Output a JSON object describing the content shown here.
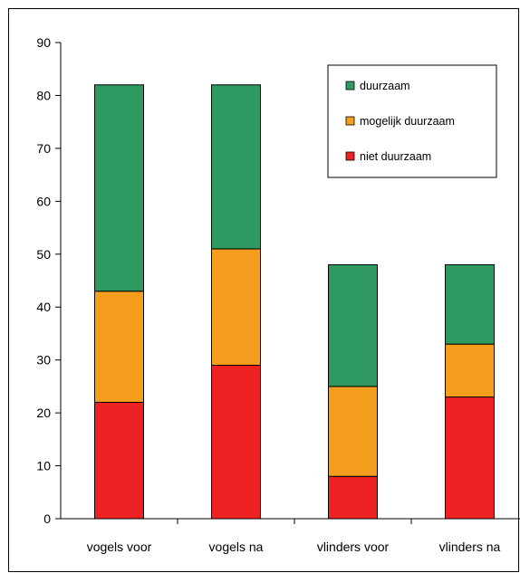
{
  "chart_data": {
    "type": "bar",
    "stacked": true,
    "categories": [
      "vogels voor",
      "vogels na",
      "vlinders voor",
      "vlinders na"
    ],
    "series": [
      {
        "name": "niet duurzaam",
        "color": "#ee2222",
        "values": [
          22,
          29,
          8,
          23
        ]
      },
      {
        "name": "mogelijk duurzaam",
        "color": "#f59e1e",
        "values": [
          21,
          22,
          17,
          10
        ]
      },
      {
        "name": "duurzaam",
        "color": "#2e9961",
        "values": [
          39,
          31,
          23,
          15
        ]
      }
    ],
    "ylim": [
      0,
      90
    ],
    "yticks": [
      0,
      10,
      20,
      30,
      40,
      50,
      60,
      70,
      80,
      90
    ],
    "legend": {
      "position": "top-right",
      "order": [
        "duurzaam",
        "mogelijk duurzaam",
        "niet duurzaam"
      ]
    },
    "grid": false
  }
}
